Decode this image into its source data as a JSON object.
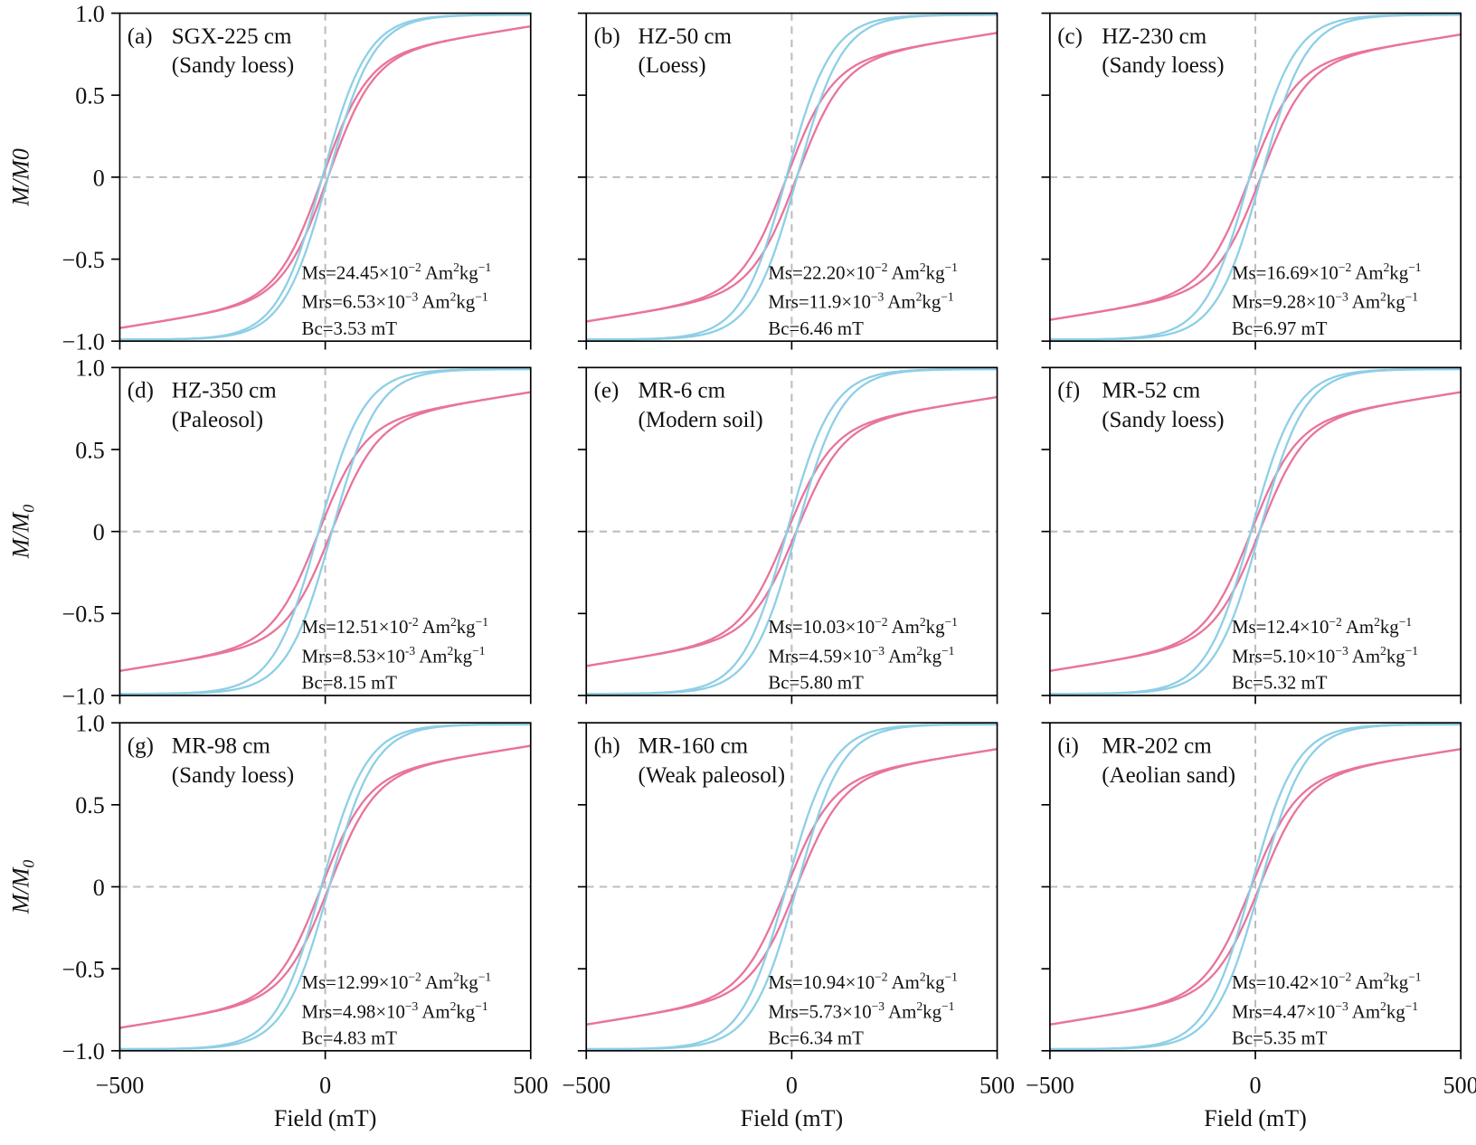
{
  "chart_data": {
    "type": "line",
    "xlabel": "Field (mT)",
    "ylabel": "M/M0",
    "ylabel_parts": {
      "m": "M",
      "slash": "/",
      "m0": "M",
      "sub": "0"
    },
    "xlim": [
      -500,
      500
    ],
    "ylim": [
      -1.0,
      1.0
    ],
    "xticks": [
      "−500",
      "0",
      "500"
    ],
    "yticks": [
      "1.0",
      "0.5",
      "0",
      "−0.5",
      "−1.0"
    ],
    "colors": {
      "blue_loop": "#8ecfe6",
      "pink_loop": "#e8749a",
      "zero_lines": "#bdbdbd"
    },
    "annotation_labels": {
      "ms": "Ms=",
      "mrs": "Mrs=",
      "bc": "Bc=",
      "times10": "×10",
      "unit_am": " Am",
      "unit_am_exp": "2",
      "unit_kg": "kg",
      "unit_kg_exp": "−1",
      "bc_unit": " mT"
    },
    "panels": [
      {
        "label": "(a)",
        "sample": "SGX-225 cm",
        "lithology": "(Sandy loess)",
        "ms": "24.45",
        "ms_exp": "−2",
        "mrs": "6.53",
        "mrs_exp": "−3",
        "bc": "3.53",
        "pink_end": 0.92
      },
      {
        "label": "(b)",
        "sample": "HZ-50 cm",
        "lithology": "(Loess)",
        "ms": "22.20",
        "ms_exp": "−2",
        "mrs": "11.9",
        "mrs_exp": "−3",
        "bc": "6.46",
        "pink_end": 0.88
      },
      {
        "label": "(c)",
        "sample": "HZ-230 cm",
        "lithology": "(Sandy loess)",
        "ms": "16.69",
        "ms_exp": "−2",
        "mrs": "9.28",
        "mrs_exp": "−3",
        "bc": "6.97",
        "pink_end": 0.87
      },
      {
        "label": "(d)",
        "sample": "HZ-350 cm",
        "lithology": "(Paleosol)",
        "ms": "12.51",
        "ms_exp": "-2",
        "mrs": "8.53",
        "mrs_exp": "-3",
        "bc": "8.15",
        "pink_end": 0.85
      },
      {
        "label": "(e)",
        "sample": "MR-6 cm",
        "lithology": "(Modern soil)",
        "ms": "10.03",
        "ms_exp": "−2",
        "mrs": "4.59",
        "mrs_exp": "−3",
        "bc": "5.80",
        "pink_end": 0.82
      },
      {
        "label": "(f)",
        "sample": "MR-52 cm",
        "lithology": "(Sandy loess)",
        "ms": "12.4",
        "ms_exp": "−2",
        "mrs": "5.10",
        "mrs_exp": "−3",
        "bc": "5.32",
        "pink_end": 0.85
      },
      {
        "label": "(g)",
        "sample": "MR-98 cm",
        "lithology": "(Sandy loess)",
        "ms": "12.99",
        "ms_exp": "−2",
        "mrs": "4.98",
        "mrs_exp": "−3",
        "bc": "4.83",
        "pink_end": 0.86
      },
      {
        "label": "(h)",
        "sample": "MR-160 cm",
        "lithology": "(Weak paleosol)",
        "ms": "10.94",
        "ms_exp": "−2",
        "mrs": "5.73",
        "mrs_exp": "−3",
        "bc": "6.34",
        "pink_end": 0.84
      },
      {
        "label": "(i)",
        "sample": "MR-202 cm",
        "lithology": "(Aeolian sand)",
        "ms": "10.42",
        "ms_exp": "−2",
        "mrs": "4.47",
        "mrs_exp": "−3",
        "bc": "5.35",
        "pink_end": 0.84
      }
    ]
  }
}
